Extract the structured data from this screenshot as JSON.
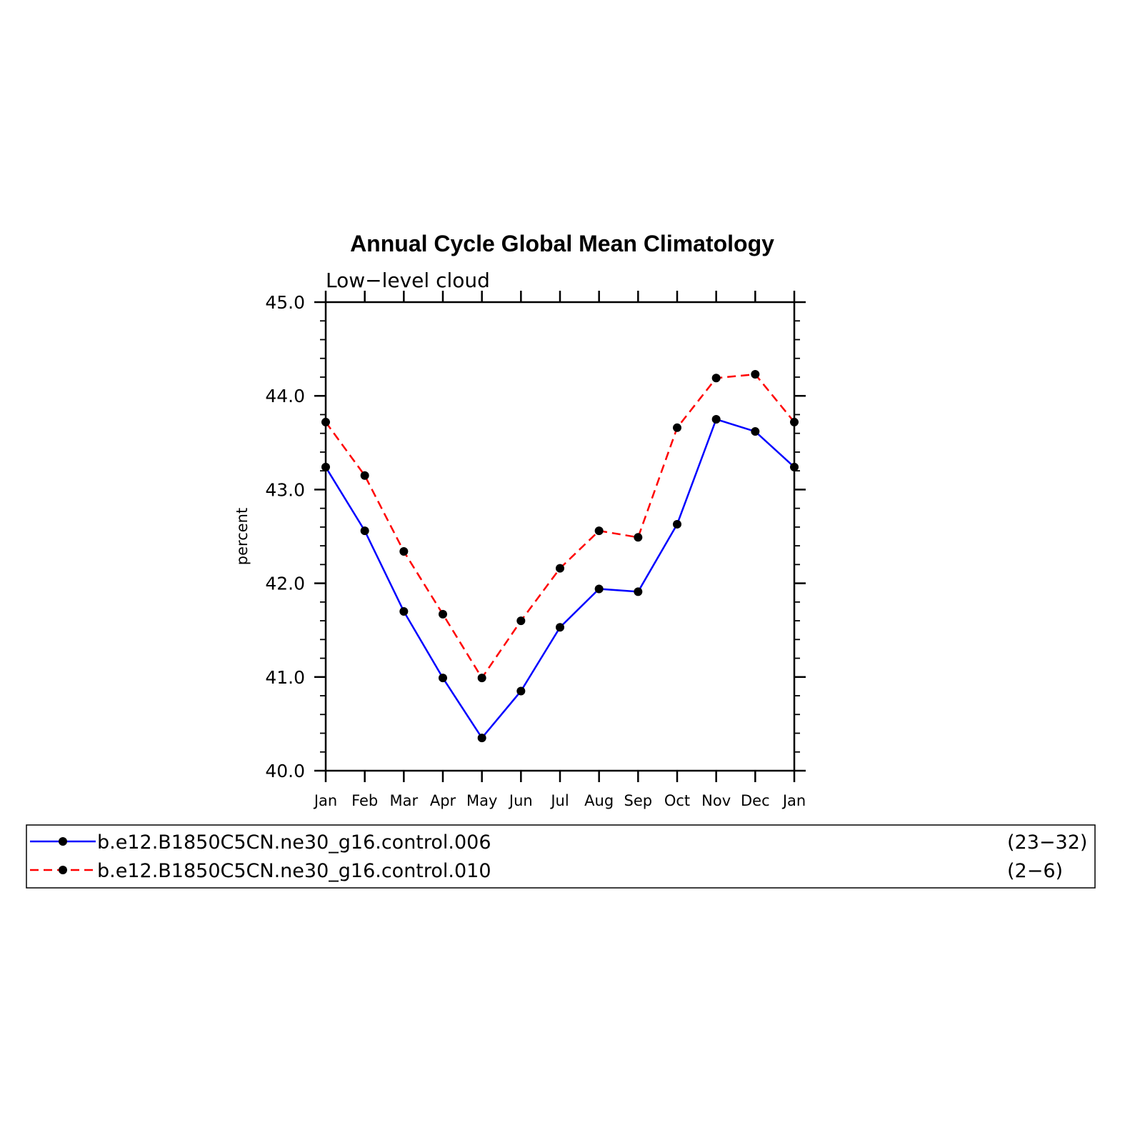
{
  "chart_data": {
    "type": "line",
    "title": "Annual Cycle Global Mean Climatology",
    "subtitle": "Low−level cloud",
    "ylabel": "percent",
    "xlabel": "",
    "categories": [
      "Jan",
      "Feb",
      "Mar",
      "Apr",
      "May",
      "Jun",
      "Jul",
      "Aug",
      "Sep",
      "Oct",
      "Nov",
      "Dec",
      "Jan"
    ],
    "ylim": [
      40.0,
      45.0
    ],
    "yticks": [
      "40.0",
      "41.0",
      "42.0",
      "43.0",
      "44.0",
      "45.0"
    ],
    "grid": false,
    "legend_position": "bottom",
    "series": [
      {
        "name": "b.e12.B1850C5CN.ne30_g16.control.006",
        "years": "(23−32)",
        "color": "#0000ff",
        "dash": "solid",
        "values": [
          43.24,
          42.56,
          41.7,
          40.99,
          40.35,
          40.85,
          41.53,
          41.94,
          41.91,
          42.63,
          43.75,
          43.62,
          43.24
        ]
      },
      {
        "name": "b.e12.B1850C5CN.ne30_g16.control.010",
        "years": "(2−6)",
        "color": "#ff0000",
        "dash": "dashed",
        "values": [
          43.72,
          43.15,
          42.34,
          41.67,
          40.99,
          41.6,
          42.16,
          42.56,
          42.49,
          43.66,
          44.19,
          44.23,
          43.72
        ]
      }
    ]
  }
}
